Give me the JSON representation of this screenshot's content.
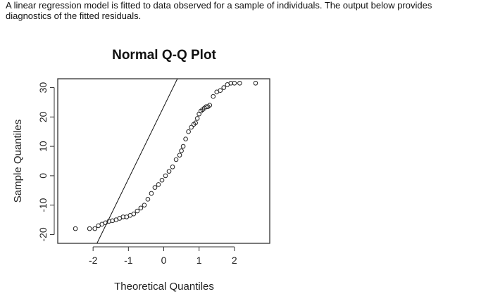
{
  "intro_text": "A linear regression model is fitted to data observed for a sample of individuals. The output below provides\ndiagnostics of the fitted residuals.",
  "chart_data": {
    "type": "scatter",
    "title": "Normal Q-Q Plot",
    "xlabel": "Theoretical Quantiles",
    "ylabel": "Sample Quantiles",
    "xlim": [
      -3.0,
      3.0
    ],
    "ylim": [
      -23,
      33
    ],
    "x_ticks": [
      -2,
      -1,
      0,
      1,
      2
    ],
    "x_tick_labels": [
      "-2",
      "-1",
      "0",
      "1",
      "2"
    ],
    "y_ticks": [
      -20,
      -10,
      0,
      10,
      20,
      30
    ],
    "y_tick_labels": [
      "-20",
      "-10",
      "0",
      "10",
      "20",
      "30"
    ],
    "grid": false,
    "reference_line": {
      "intercept": 23.5,
      "slope": 24.6
    },
    "points": {
      "x": [
        -2.5,
        -2.1,
        -1.95,
        -1.85,
        -1.75,
        -1.65,
        -1.55,
        -1.45,
        -1.35,
        -1.25,
        -1.15,
        -1.05,
        -0.95,
        -0.85,
        -0.75,
        -0.65,
        -0.55,
        -0.45,
        -0.35,
        -0.25,
        -0.15,
        -0.05,
        0.05,
        0.15,
        0.25,
        0.35,
        0.45,
        0.5,
        0.55,
        0.62,
        0.7,
        0.78,
        0.85,
        0.9,
        0.95,
        1.0,
        1.05,
        1.1,
        1.15,
        1.2,
        1.25,
        1.3,
        1.4,
        1.5,
        1.6,
        1.7,
        1.8,
        1.9,
        2.0,
        2.15,
        2.6
      ],
      "y": [
        -18,
        -18,
        -18,
        -17,
        -16.5,
        -16,
        -15.5,
        -15.3,
        -15,
        -14.5,
        -14,
        -14,
        -13.5,
        -13,
        -12,
        -11,
        -10,
        -8,
        -6,
        -4,
        -3,
        -1.5,
        0,
        1.5,
        3,
        5.5,
        7,
        8.5,
        10,
        12.5,
        15,
        16.5,
        17.5,
        18,
        19.5,
        21,
        22,
        22.5,
        23,
        23.5,
        23.5,
        24,
        27,
        28.5,
        29,
        30,
        31,
        31.5,
        31.5,
        31.5,
        31.5
      ]
    },
    "colors": {
      "points": "#222222",
      "line": "#111111",
      "frame": "#333333"
    }
  }
}
